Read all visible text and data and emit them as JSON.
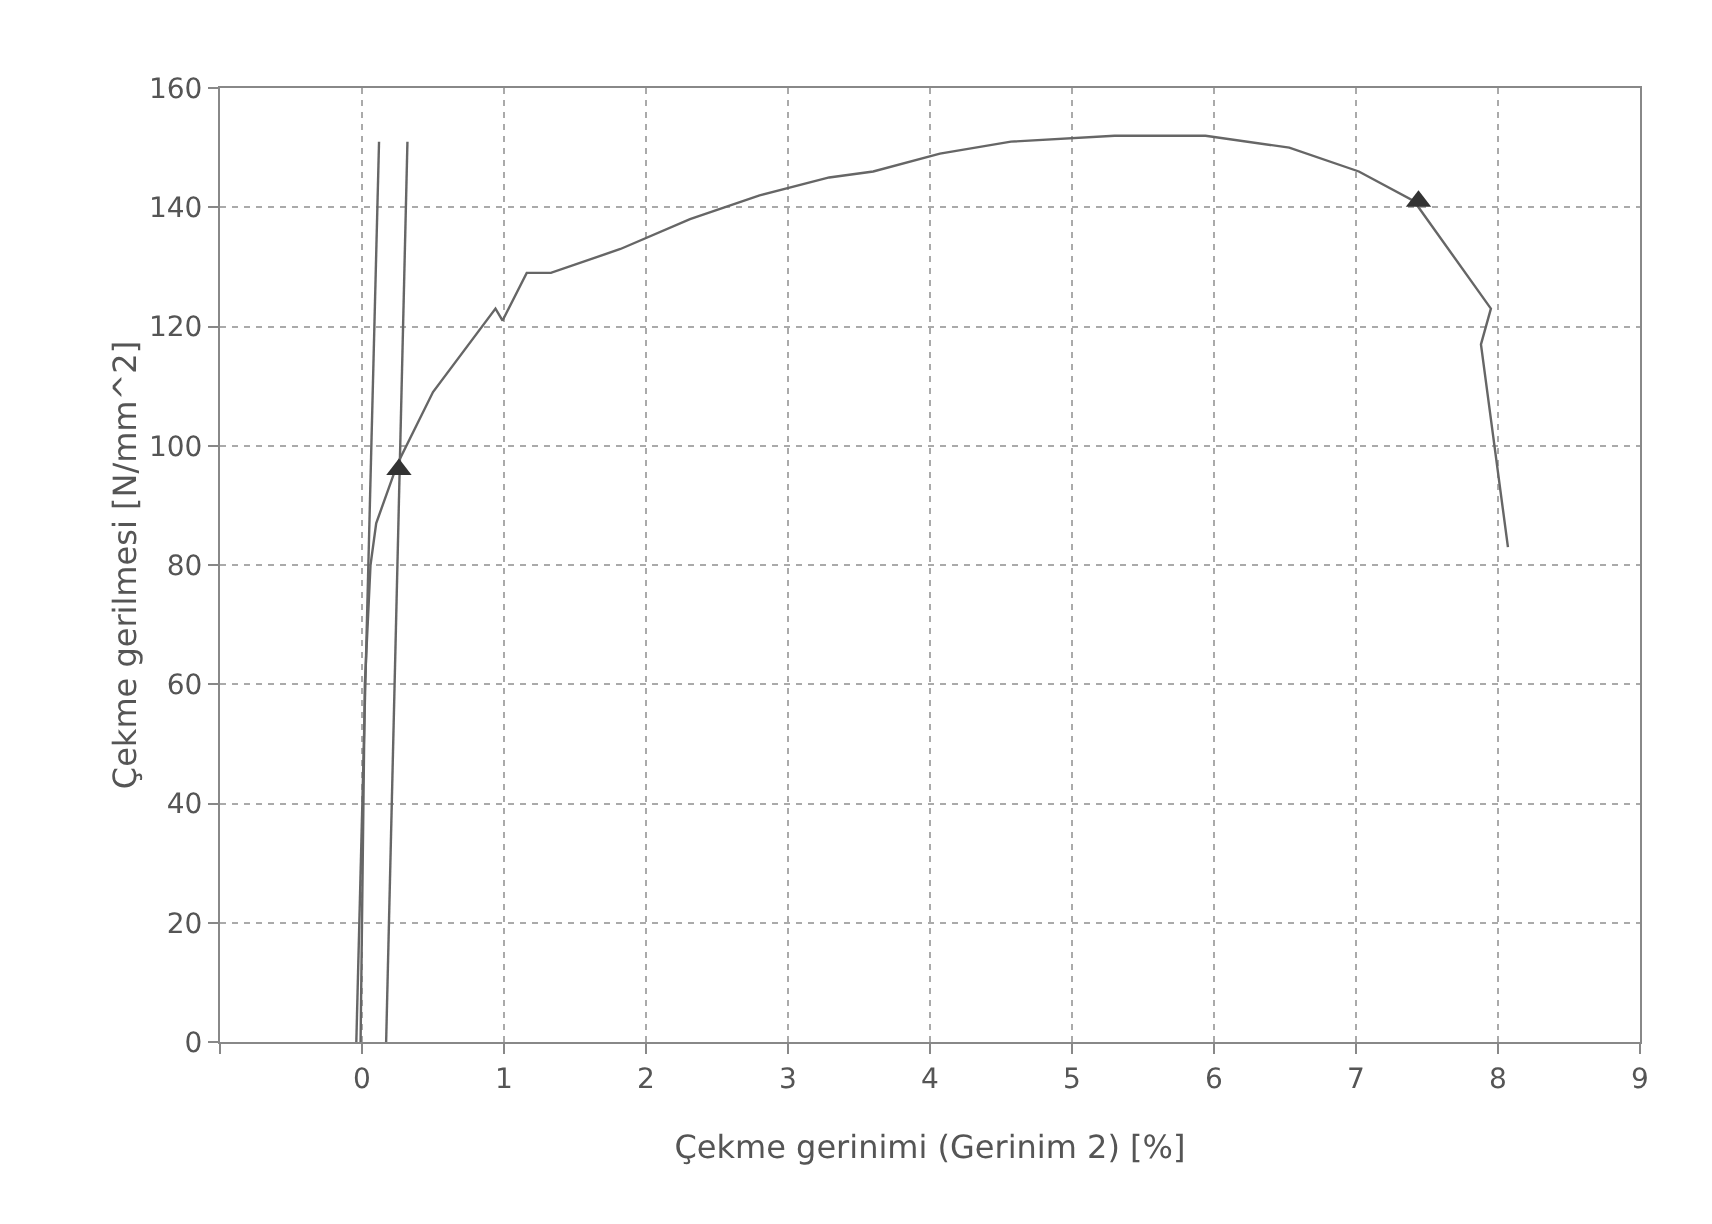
{
  "chart_data": {
    "type": "line",
    "xlabel": "Çekme gerinimi (Gerinim 2) [%]",
    "ylabel": "Çekme gerilmesi [N/mm^2]",
    "xlim": [
      -1,
      9
    ],
    "xticks": [
      {
        "value": -1,
        "label": null
      },
      0,
      1,
      2,
      3,
      4,
      5,
      6,
      7,
      8,
      9
    ],
    "ylim": [
      0,
      160
    ],
    "yticks": [
      0,
      20,
      40,
      60,
      80,
      100,
      120,
      140,
      160
    ],
    "grid": true,
    "marker": "none",
    "line_style": "solid",
    "series": [
      {
        "type": "line",
        "color": "#666666",
        "x": [
          -0.01,
          0.02,
          0.06,
          0.1,
          0.25,
          0.5,
          0.94,
          0.99,
          1.16,
          1.33,
          1.82,
          2.31,
          2.8,
          3.29,
          3.6,
          4.07,
          4.57,
          5.3,
          5.94,
          6.53,
          7.02,
          7.41,
          7.95,
          7.88,
          8.07
        ],
        "values": [
          0,
          60,
          80,
          87,
          97,
          109,
          123,
          121,
          129,
          129,
          133,
          138,
          142,
          145,
          146,
          149,
          151,
          152,
          152,
          150,
          146,
          141,
          123,
          117,
          83
        ]
      },
      {
        "type": "line",
        "color": "#666666",
        "x": [
          -0.04,
          0.12
        ],
        "values": [
          0,
          151
        ]
      },
      {
        "type": "line",
        "color": "#666666",
        "x": [
          0.17,
          0.32
        ],
        "values": [
          0,
          151
        ]
      },
      {
        "type": "scatter",
        "color": "#333333",
        "marker": "triangle",
        "x": [
          0.26,
          7.44
        ],
        "values": [
          96,
          141
        ]
      }
    ]
  }
}
